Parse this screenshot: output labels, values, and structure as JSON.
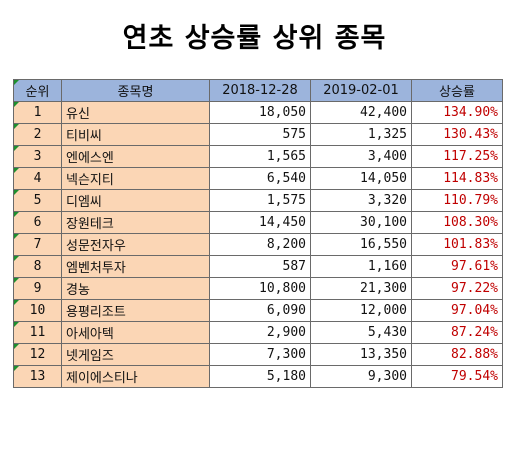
{
  "title": "연초 상승률 상위 종목",
  "colors": {
    "header_bg": "#9cb4dc",
    "rank_name_bg": "#fbd6b5",
    "rate_text": "#c00000",
    "corner_marker": "#1f8f2f"
  },
  "table": {
    "headers": [
      "순위",
      "종목명",
      "2018-12-28",
      "2019-02-01",
      "상승률"
    ],
    "rows": [
      {
        "rank": "1",
        "name": "유신",
        "d1": "18,050",
        "d2": "42,400",
        "rate": "134.90%"
      },
      {
        "rank": "2",
        "name": "티비씨",
        "d1": "575",
        "d2": "1,325",
        "rate": "130.43%"
      },
      {
        "rank": "3",
        "name": "엔에스엔",
        "d1": "1,565",
        "d2": "3,400",
        "rate": "117.25%"
      },
      {
        "rank": "4",
        "name": "넥슨지티",
        "d1": "6,540",
        "d2": "14,050",
        "rate": "114.83%"
      },
      {
        "rank": "5",
        "name": "디엠씨",
        "d1": "1,575",
        "d2": "3,320",
        "rate": "110.79%"
      },
      {
        "rank": "6",
        "name": "장원테크",
        "d1": "14,450",
        "d2": "30,100",
        "rate": "108.30%"
      },
      {
        "rank": "7",
        "name": "성문전자우",
        "d1": "8,200",
        "d2": "16,550",
        "rate": "101.83%"
      },
      {
        "rank": "8",
        "name": "엠벤처투자",
        "d1": "587",
        "d2": "1,160",
        "rate": "97.61%"
      },
      {
        "rank": "9",
        "name": "경농",
        "d1": "10,800",
        "d2": "21,300",
        "rate": "97.22%"
      },
      {
        "rank": "10",
        "name": "용평리조트",
        "d1": "6,090",
        "d2": "12,000",
        "rate": "97.04%"
      },
      {
        "rank": "11",
        "name": "아세아텍",
        "d1": "2,900",
        "d2": "5,430",
        "rate": "87.24%"
      },
      {
        "rank": "12",
        "name": "넷게임즈",
        "d1": "7,300",
        "d2": "13,350",
        "rate": "82.88%"
      },
      {
        "rank": "13",
        "name": "제이에스티나",
        "d1": "5,180",
        "d2": "9,300",
        "rate": "79.54%"
      }
    ]
  }
}
